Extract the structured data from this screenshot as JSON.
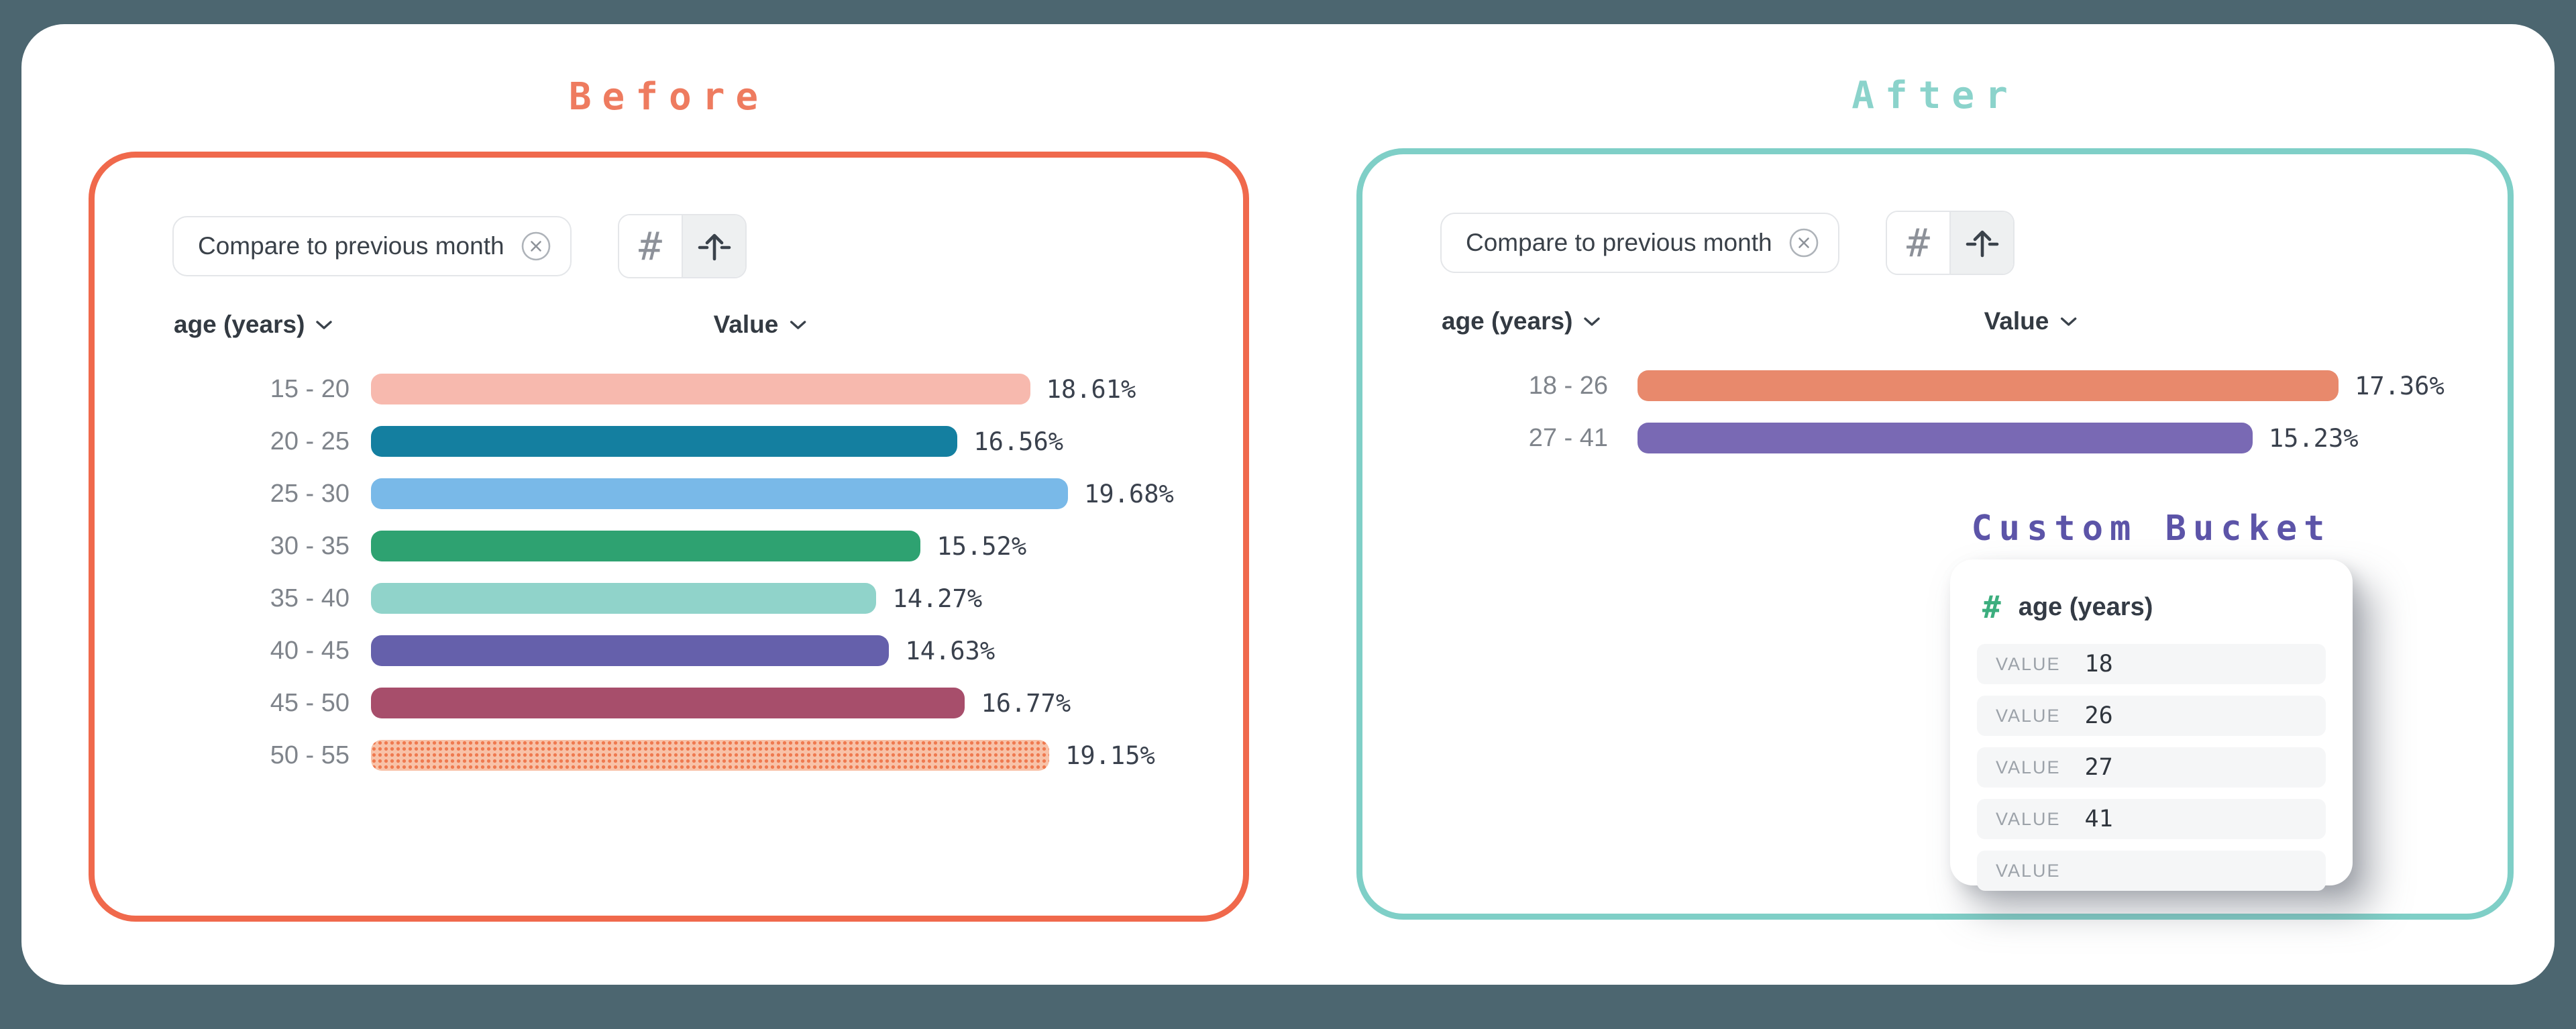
{
  "page": {
    "background_color": "#4C6670",
    "card_color": "#FFFFFF"
  },
  "panels": {
    "before": {
      "title": "Before",
      "title_color": "#EE7B5F",
      "accent_color": "#F0694C",
      "chip_label": "Compare to previous month",
      "chip_close_icon": "circle-x-icon",
      "view_toggle_icons": [
        "hash-icon",
        "arrow-up-icon"
      ],
      "hash_glyph": "#",
      "column_age": "age (years)",
      "column_value": "Value",
      "rows": [
        {
          "category": "15 - 20",
          "value": 18.61,
          "label": "18.61%",
          "color": "#F7B9AE"
        },
        {
          "category": "20 - 25",
          "value": 16.56,
          "label": "16.56%",
          "color": "#147FA0"
        },
        {
          "category": "25 - 30",
          "value": 19.68,
          "label": "19.68%",
          "color": "#79B9E8"
        },
        {
          "category": "30 - 35",
          "value": 15.52,
          "label": "15.52%",
          "color": "#2EA271"
        },
        {
          "category": "35 - 40",
          "value": 14.27,
          "label": "14.27%",
          "color": "#90D3CA"
        },
        {
          "category": "40 - 45",
          "value": 14.63,
          "label": "14.63%",
          "color": "#6560AB"
        },
        {
          "category": "45 - 50",
          "value": 16.77,
          "label": "16.77%",
          "color": "#A74E6B"
        },
        {
          "category": "50 - 55",
          "value": 19.15,
          "label": "19.15%",
          "color": "#F8C2A8",
          "pattern": "halftone"
        }
      ]
    },
    "after": {
      "title": "After",
      "title_color": "#8BD3CB",
      "accent_color": "#7FCFC7",
      "chip_label": "Compare to previous month",
      "chip_close_icon": "circle-x-icon",
      "view_toggle_icons": [
        "hash-icon",
        "arrow-up-icon"
      ],
      "hash_glyph": "#",
      "column_age": "age (years)",
      "column_value": "Value",
      "rows": [
        {
          "category": "18 - 26",
          "value": 17.36,
          "label": "17.36%",
          "color": "#E8896C"
        },
        {
          "category": "27 - 41",
          "value": 15.23,
          "label": "15.23%",
          "color": "#7969B4"
        }
      ],
      "custom_bucket": {
        "title": "Custom Bucket",
        "title_color": "#5C54A8",
        "hash_glyph": "#",
        "hash_color": "#3CAE7E",
        "field_label": "age (years)",
        "rows": [
          {
            "label": "VALUE",
            "value": "18"
          },
          {
            "label": "VALUE",
            "value": "26"
          },
          {
            "label": "VALUE",
            "value": "27"
          },
          {
            "label": "VALUE",
            "value": "41"
          },
          {
            "label": "VALUE",
            "value": ""
          }
        ]
      }
    }
  },
  "chart_data": [
    {
      "type": "bar",
      "orientation": "horizontal",
      "title": "Before",
      "categories": [
        "15 - 20",
        "20 - 25",
        "25 - 30",
        "30 - 35",
        "35 - 40",
        "40 - 45",
        "45 - 50",
        "50 - 55"
      ],
      "values": [
        18.61,
        16.56,
        19.68,
        15.52,
        14.27,
        14.63,
        16.77,
        19.15
      ],
      "data_labels": [
        "18.61%",
        "16.56%",
        "19.68%",
        "15.52%",
        "14.27%",
        "14.63%",
        "16.77%",
        "19.15%"
      ],
      "colors": [
        "#F7B9AE",
        "#147FA0",
        "#79B9E8",
        "#2EA271",
        "#90D3CA",
        "#6560AB",
        "#A74E6B",
        "#F8C2A8"
      ],
      "xlabel": "Value",
      "ylabel": "age (years)",
      "xlim": [
        0,
        20
      ],
      "grid": false,
      "legend": false
    },
    {
      "type": "bar",
      "orientation": "horizontal",
      "title": "After",
      "categories": [
        "18 - 26",
        "27 - 41"
      ],
      "values": [
        17.36,
        15.23
      ],
      "data_labels": [
        "17.36%",
        "15.23%"
      ],
      "colors": [
        "#E8896C",
        "#7969B4"
      ],
      "xlabel": "Value",
      "ylabel": "age (years)",
      "xlim": [
        0,
        20
      ],
      "grid": false,
      "legend": false
    }
  ]
}
